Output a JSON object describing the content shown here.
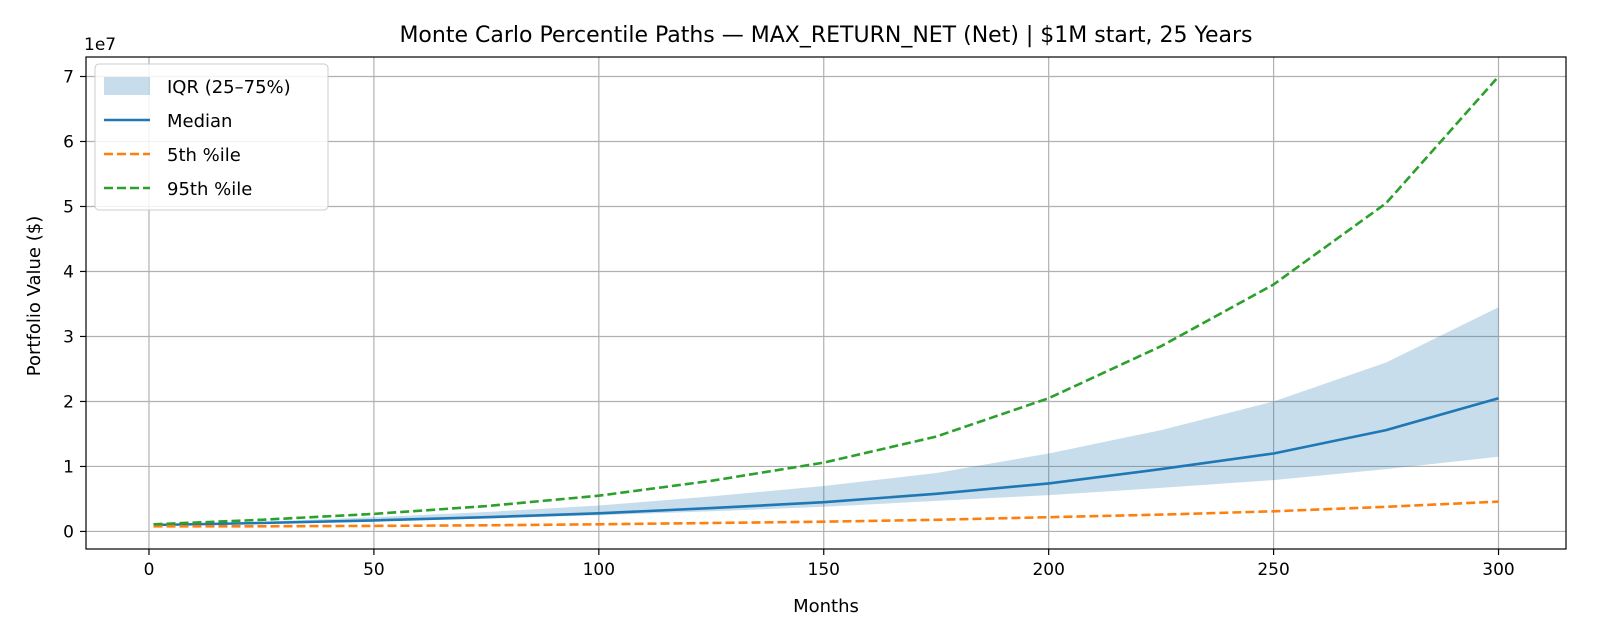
{
  "chart_data": {
    "type": "line",
    "title": "Monte Carlo Percentile Paths — MAX_RETURN_NET (Net) | $1M start, 25 Years",
    "xlabel": "Months",
    "ylabel": "Portfolio Value ($)",
    "y_offset_label": "1e7",
    "xlim": [
      -14,
      315
    ],
    "ylim": [
      -2700000,
      73000000
    ],
    "x_ticks": [
      0,
      50,
      100,
      150,
      200,
      250,
      300
    ],
    "x_tick_labels": [
      "0",
      "50",
      "100",
      "150",
      "200",
      "250",
      "300"
    ],
    "y_ticks": [
      0,
      10000000,
      20000000,
      30000000,
      40000000,
      50000000,
      60000000,
      70000000
    ],
    "y_tick_labels": [
      "0",
      "1",
      "2",
      "3",
      "4",
      "5",
      "6",
      "7"
    ],
    "grid": true,
    "legend_position": "top-left",
    "colors": {
      "iqr": "#1f77b4",
      "median": "#1f77b4",
      "p5": "#ff7f0e",
      "p95": "#2ca02c"
    },
    "x": [
      1,
      25,
      50,
      75,
      100,
      125,
      150,
      175,
      200,
      225,
      250,
      275,
      300
    ],
    "band": {
      "name": "IQR (25–75%)",
      "lower": [
        1000000,
        1250000,
        1600000,
        2000000,
        2500000,
        3100000,
        3800000,
        4700000,
        5600000,
        6700000,
        7900000,
        9600000,
        11500000
      ],
      "upper": [
        1000000,
        1500000,
        2200000,
        3000000,
        4000000,
        5400000,
        7000000,
        9000000,
        12000000,
        15600000,
        20000000,
        26000000,
        34500000
      ]
    },
    "series": [
      {
        "name": "Median",
        "style": "solid",
        "values": [
          1000000,
          1300000,
          1700000,
          2200000,
          2800000,
          3600000,
          4500000,
          5800000,
          7400000,
          9600000,
          12000000,
          15600000,
          20500000
        ]
      },
      {
        "name": "5th %ile",
        "style": "dashed",
        "values": [
          800000,
          800000,
          850000,
          950000,
          1100000,
          1300000,
          1500000,
          1800000,
          2200000,
          2600000,
          3100000,
          3800000,
          4600000
        ]
      },
      {
        "name": "95th %ile",
        "style": "dashed",
        "values": [
          1100000,
          1800000,
          2700000,
          3900000,
          5500000,
          7800000,
          10600000,
          14600000,
          20500000,
          28500000,
          38000000,
          50500000,
          70000000
        ]
      }
    ]
  }
}
